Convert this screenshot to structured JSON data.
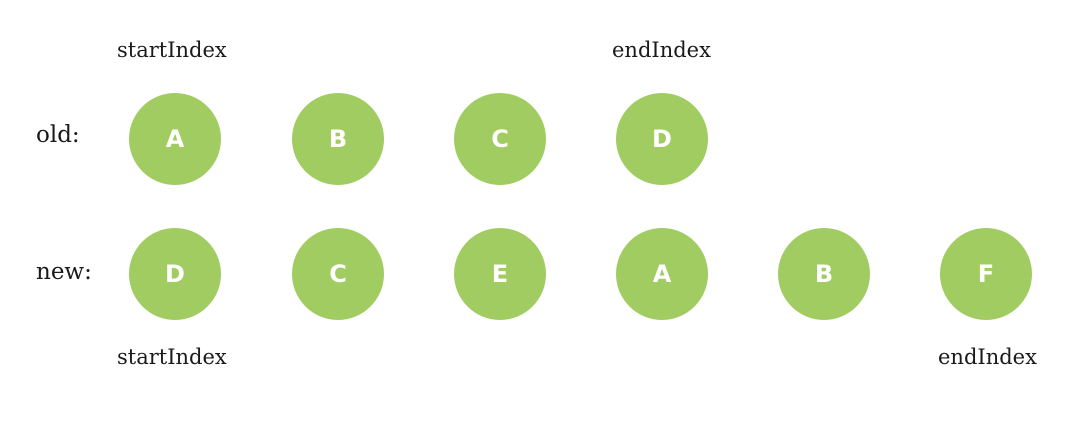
{
  "labels": {
    "old_row": "old:",
    "new_row": "new:"
  },
  "old_indices": {
    "start": "startIndex",
    "end": "endIndex"
  },
  "new_indices": {
    "start": "startIndex",
    "end": "endIndex"
  },
  "old_nodes": [
    "A",
    "B",
    "C",
    "D"
  ],
  "new_nodes": [
    "D",
    "C",
    "E",
    "A",
    "B",
    "F"
  ],
  "colors": {
    "node_fill": "#a0cc62",
    "node_text": "#ffffff",
    "label_text": "#1a1a1a"
  }
}
